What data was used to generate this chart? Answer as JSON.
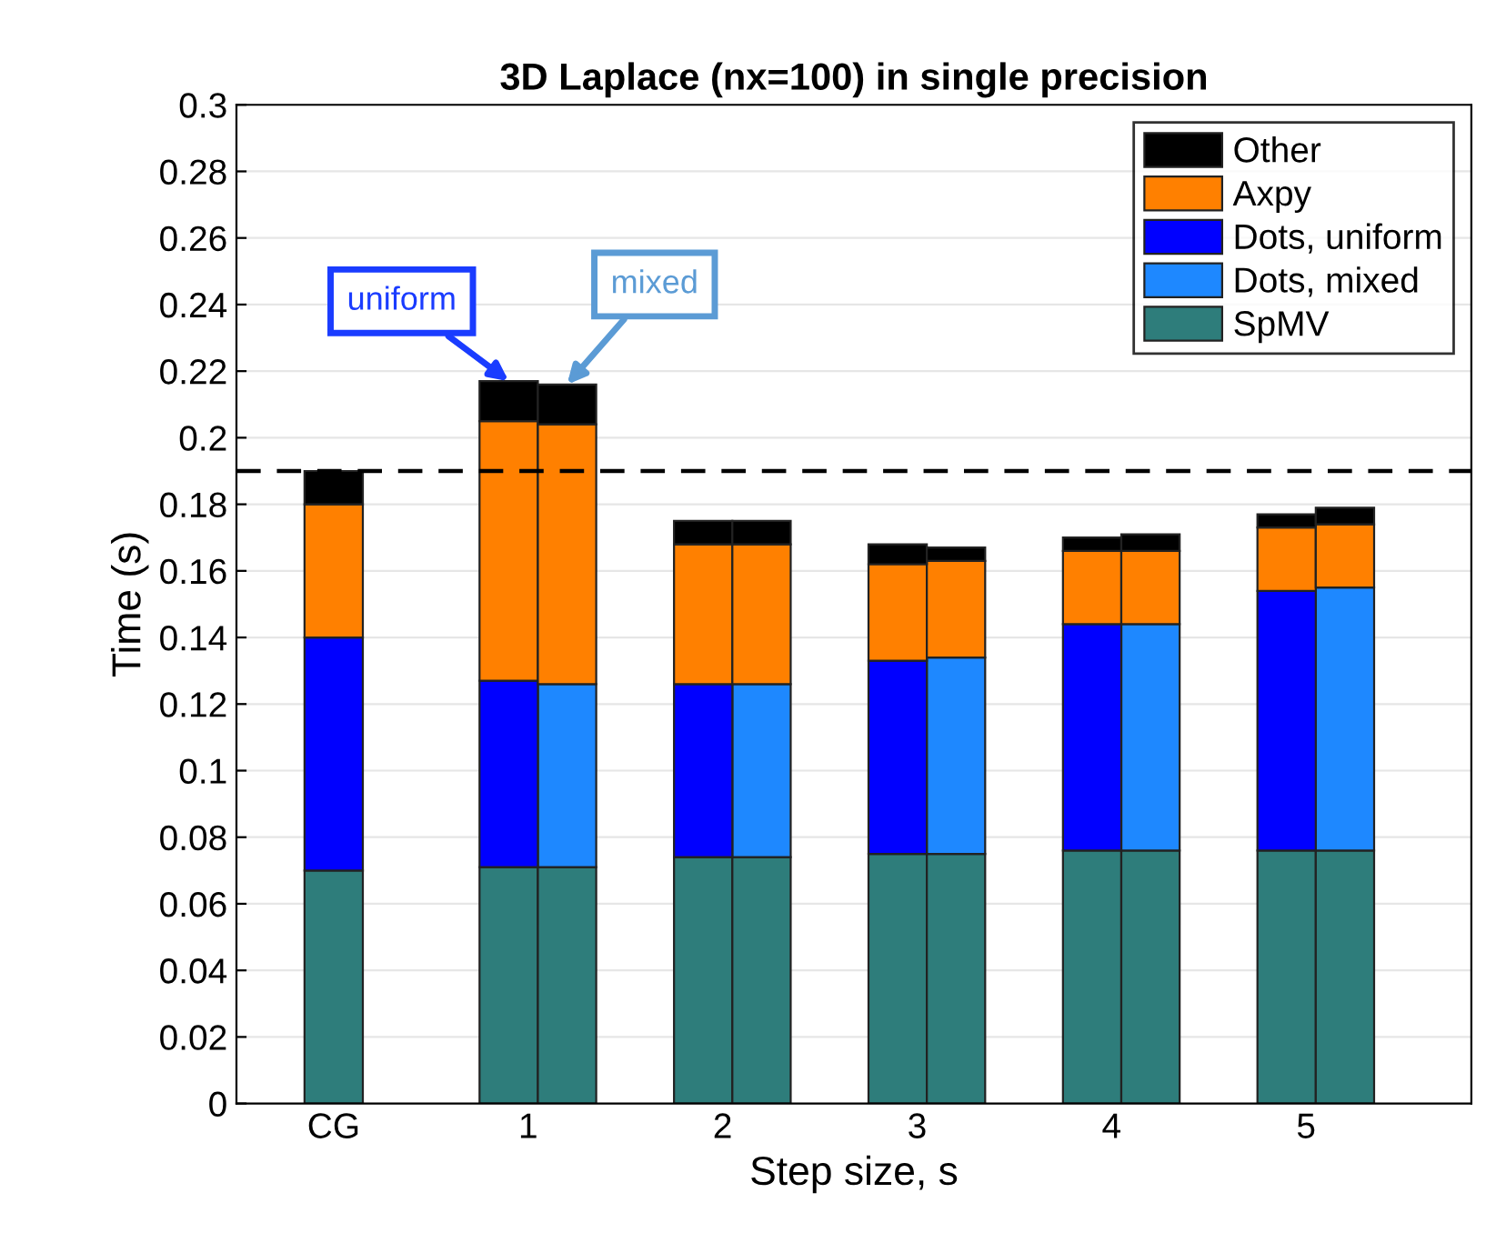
{
  "chart_data": {
    "type": "bar",
    "stacked": true,
    "title": "3D Laplace (nx=100) in single precision",
    "xlabel": "Step size, s",
    "ylabel": "Time (s)",
    "x": [
      0,
      0.9,
      1.2,
      1.9,
      2.2,
      2.9,
      3.2,
      3.9,
      4.2,
      4.9,
      5.2
    ],
    "xlim": [
      -0.5,
      5.85
    ],
    "xticks": [
      {
        "value": 0,
        "label": "CG"
      },
      1,
      2,
      3,
      4,
      5
    ],
    "ylim": [
      0,
      0.3
    ],
    "yticks": [
      0,
      0.02,
      0.04,
      0.06,
      0.08,
      0.1,
      0.12,
      0.14,
      0.16,
      0.18,
      0.2,
      0.22,
      0.24,
      0.26,
      0.28,
      0.3
    ],
    "grid": "y",
    "legend": "top right",
    "series": [
      {
        "name": "SpMV",
        "color": "#2e7d7b",
        "values": [
          0.07,
          0.071,
          0.071,
          0.074,
          0.074,
          0.075,
          0.075,
          0.076,
          0.076,
          0.076,
          0.076
        ]
      },
      {
        "name": "Dots, mixed",
        "color": "#1e88ff",
        "values": [
          null,
          null,
          0.055,
          null,
          0.052,
          null,
          0.059,
          null,
          0.068,
          null,
          0.079
        ]
      },
      {
        "name": "Dots, uniform",
        "color": "#0000ff",
        "values": [
          0.07,
          0.056,
          null,
          0.052,
          null,
          0.058,
          null,
          0.068,
          null,
          0.078,
          null
        ]
      },
      {
        "name": "Axpy",
        "color": "#ff8000",
        "values": [
          0.04,
          0.078,
          0.078,
          0.042,
          0.042,
          0.029,
          0.029,
          0.022,
          0.022,
          0.019,
          0.019
        ]
      },
      {
        "name": "Other",
        "color": "#000000",
        "values": [
          0.01,
          0.012,
          0.012,
          0.007,
          0.007,
          0.006,
          0.004,
          0.004,
          0.005,
          0.004,
          0.005
        ]
      }
    ],
    "ref_lines": [
      {
        "axis": "y",
        "value": 0.19,
        "color": "#000000",
        "line_style": "dashed"
      }
    ],
    "annotations": [
      {
        "text": "uniform",
        "x": 0.9,
        "y": 0.217
      },
      {
        "text": "mixed",
        "x": 1.2,
        "y": 0.216
      }
    ]
  }
}
